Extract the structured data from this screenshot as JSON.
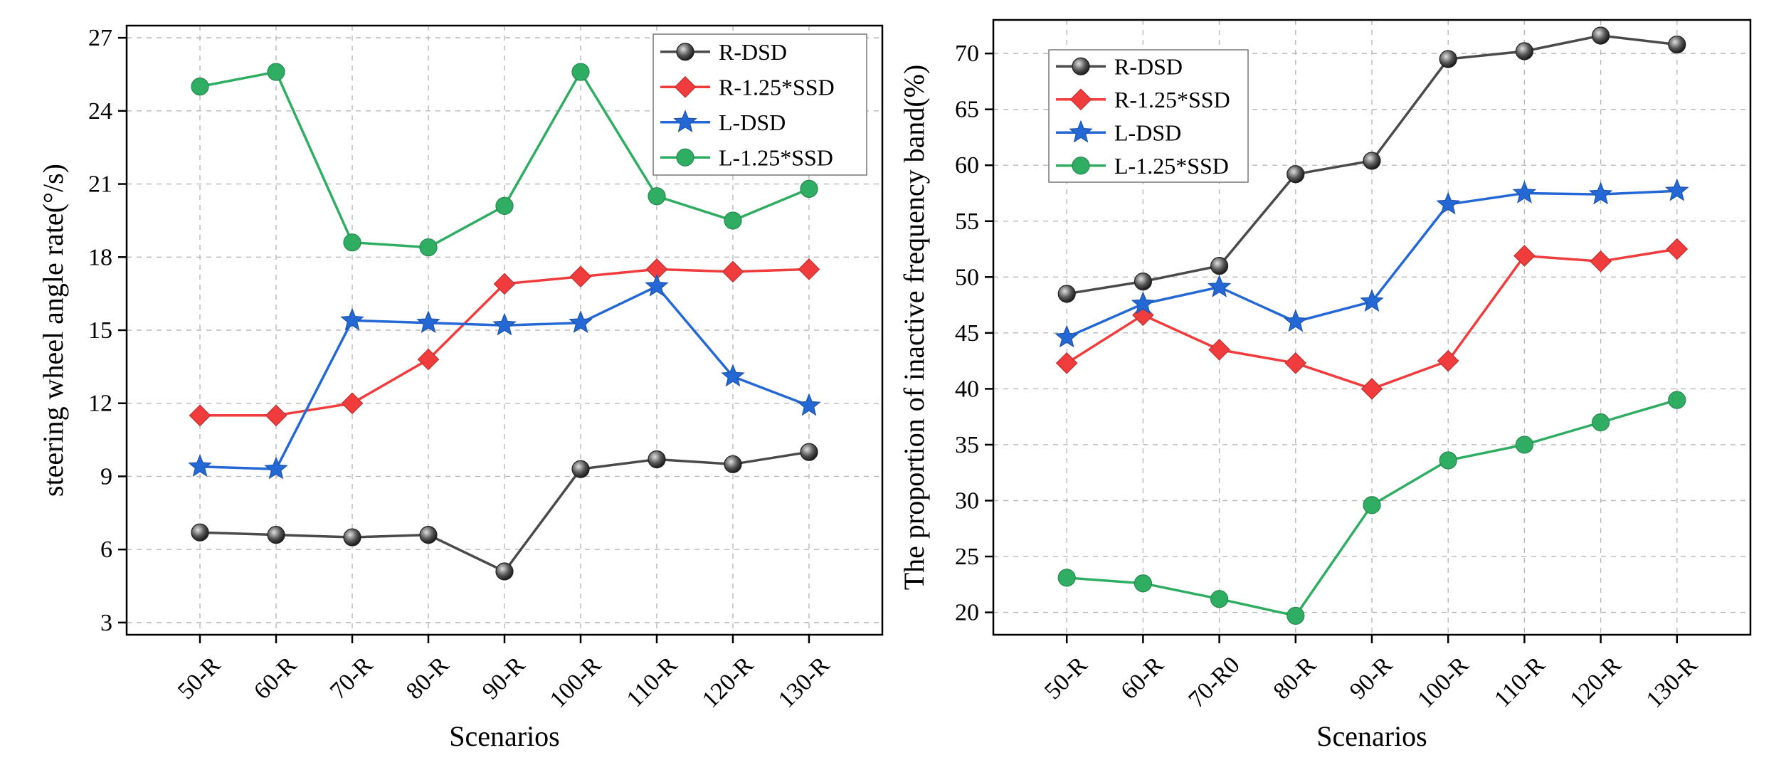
{
  "colors": {
    "R-DSD": "#4a4a4a",
    "R-1.25*SSD": "#f03c3c",
    "L-DSD": "#2468d6",
    "L-1.25*SSD": "#2fad62"
  },
  "chart_data": [
    {
      "type": "line",
      "xlabel": "Scenarios",
      "ylabel": "steering wheel angle rate(°/s)",
      "categories": [
        "50-R",
        "60-R",
        "70-R",
        "80-R",
        "90-R",
        "100-R",
        "110-R",
        "120-R",
        "130-R"
      ],
      "ylim": [
        2.5,
        27.5
      ],
      "yticks": [
        "3",
        "6",
        "9",
        "12",
        "15",
        "18",
        "21",
        "24",
        "27"
      ],
      "grid": true,
      "legend": "top-right",
      "series": [
        {
          "name": "R-DSD",
          "marker": "circle",
          "values": [
            6.7,
            6.6,
            6.5,
            6.6,
            5.1,
            9.3,
            9.7,
            9.5,
            10.0
          ]
        },
        {
          "name": "R-1.25*SSD",
          "marker": "diamond",
          "values": [
            11.5,
            11.5,
            12.0,
            13.8,
            16.9,
            17.2,
            17.5,
            17.4,
            17.5
          ]
        },
        {
          "name": "L-DSD",
          "marker": "star",
          "values": [
            9.4,
            9.3,
            15.4,
            15.3,
            15.2,
            15.3,
            16.8,
            13.1,
            11.9
          ]
        },
        {
          "name": "L-1.25*SSD",
          "marker": "circle-flat",
          "values": [
            25.0,
            25.6,
            18.6,
            18.4,
            20.1,
            25.6,
            20.5,
            19.5,
            20.8
          ]
        }
      ]
    },
    {
      "type": "line",
      "xlabel": "Scenarios",
      "ylabel": "The proportion of inactive frequency band(%)",
      "categories": [
        "50-R",
        "60-R",
        "70-R0",
        "80-R",
        "90-R",
        "100-R",
        "110-R",
        "120-R",
        "130-R"
      ],
      "ylim": [
        18,
        73
      ],
      "yticks": [
        "20",
        "25",
        "30",
        "35",
        "40",
        "45",
        "50",
        "55",
        "60",
        "65",
        "70"
      ],
      "grid": true,
      "legend": "top-left",
      "series": [
        {
          "name": "R-DSD",
          "marker": "circle",
          "values": [
            48.5,
            49.6,
            51.0,
            59.2,
            60.4,
            69.5,
            70.2,
            71.6,
            70.8
          ]
        },
        {
          "name": "R-1.25*SSD",
          "marker": "diamond",
          "values": [
            42.3,
            46.6,
            43.5,
            42.3,
            40.0,
            42.5,
            51.9,
            51.4,
            52.5
          ]
        },
        {
          "name": "L-DSD",
          "marker": "star",
          "values": [
            44.6,
            47.6,
            49.1,
            46.0,
            47.8,
            56.5,
            57.5,
            57.4,
            57.7
          ]
        },
        {
          "name": "L-1.25*SSD",
          "marker": "circle-flat",
          "values": [
            23.1,
            22.6,
            21.2,
            19.7,
            29.6,
            33.6,
            35.0,
            37.0,
            39.0
          ]
        }
      ]
    }
  ]
}
